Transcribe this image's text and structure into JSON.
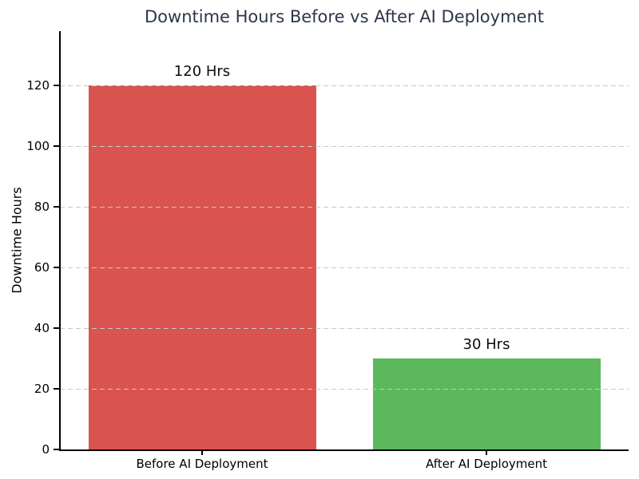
{
  "chart_data": {
    "type": "bar",
    "title": "Downtime Hours Before vs After AI Deployment",
    "xlabel": "",
    "ylabel": "Downtime Hours",
    "categories": [
      "Before AI Deployment",
      "After AI Deployment"
    ],
    "values": [
      120,
      30
    ],
    "bar_labels": [
      "120 Hrs",
      "30 Hrs"
    ],
    "bar_colors": [
      "#d9534f",
      "#5cb85c"
    ],
    "yticks": [
      0,
      20,
      40,
      60,
      80,
      100,
      120
    ],
    "ylim": [
      0,
      138
    ],
    "grid": "horizontal-dashed",
    "grid_color": "#c9c9c9",
    "title_color": "#2c3748",
    "text_color": "#000000",
    "background_color": "#ffffff",
    "legend": "none"
  }
}
